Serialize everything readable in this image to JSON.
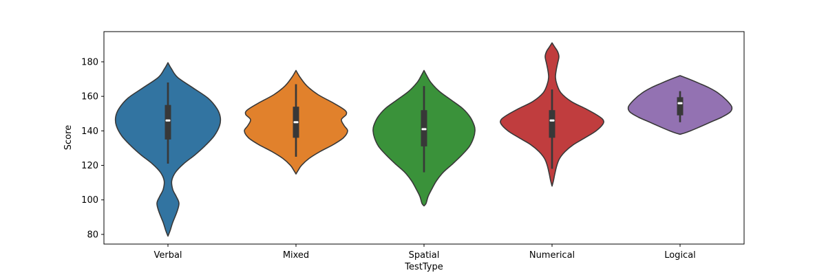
{
  "chart_data": {
    "type": "violin",
    "title": "",
    "xlabel": "TestType",
    "ylabel": "Score",
    "categories": [
      "Verbal",
      "Mixed",
      "Spatial",
      "Numerical",
      "Logical"
    ],
    "yticks": [
      80,
      100,
      120,
      140,
      160,
      180
    ],
    "ylim": [
      74.4,
      197.5
    ],
    "grid": false,
    "legend": false,
    "background": "#ffffff",
    "spine_color": "#000000",
    "edge_color": "#383838",
    "inner_box_color": "#383838",
    "median_color": "#ffffff",
    "profile_units": [
      "score",
      "halfwidth_px"
    ],
    "series": [
      {
        "name": "Verbal",
        "color": "#3274a1",
        "stats": {
          "min": 79,
          "whisker_low": 121,
          "q1": 135,
          "median": 146,
          "q3": 155,
          "whisker_high": 168,
          "max": 179
        },
        "profile": [
          [
            179.5,
            0
          ],
          [
            176,
            5
          ],
          [
            171,
            14
          ],
          [
            165,
            36
          ],
          [
            159,
            58
          ],
          [
            153,
            71
          ],
          [
            148,
            76
          ],
          [
            143,
            75
          ],
          [
            137,
            67
          ],
          [
            131,
            53
          ],
          [
            126,
            39
          ],
          [
            121,
            23
          ],
          [
            116,
            11
          ],
          [
            111,
            5.5
          ],
          [
            106,
            7
          ],
          [
            102,
            12
          ],
          [
            98,
            16
          ],
          [
            93,
            13
          ],
          [
            87,
            7
          ],
          [
            82,
            3
          ],
          [
            79,
            0
          ]
        ]
      },
      {
        "name": "Mixed",
        "color": "#e1812c",
        "stats": {
          "min": 115,
          "whisker_low": 125,
          "q1": 136,
          "median": 145,
          "q3": 154,
          "whisker_high": 167,
          "max": 175
        },
        "profile": [
          [
            175,
            0
          ],
          [
            171,
            6
          ],
          [
            166,
            16
          ],
          [
            161,
            32
          ],
          [
            156,
            55
          ],
          [
            152,
            71
          ],
          [
            149.5,
            73
          ],
          [
            146.5,
            66
          ],
          [
            143,
            70
          ],
          [
            140,
            75
          ],
          [
            136,
            69
          ],
          [
            132,
            54
          ],
          [
            128,
            35
          ],
          [
            124,
            19
          ],
          [
            120,
            8
          ],
          [
            117,
            3
          ],
          [
            115,
            0
          ]
        ]
      },
      {
        "name": "Spatial",
        "color": "#3a923a",
        "stats": {
          "min": 97,
          "whisker_low": 116,
          "q1": 131,
          "median": 141,
          "q3": 152,
          "whisker_high": 166,
          "max": 175
        },
        "profile": [
          [
            175,
            0
          ],
          [
            172,
            4
          ],
          [
            168,
            10
          ],
          [
            163,
            22
          ],
          [
            158,
            39
          ],
          [
            153,
            56
          ],
          [
            148,
            67
          ],
          [
            143,
            73
          ],
          [
            140,
            74
          ],
          [
            136,
            72
          ],
          [
            131,
            66
          ],
          [
            126,
            55
          ],
          [
            121,
            42
          ],
          [
            116,
            28
          ],
          [
            111,
            18
          ],
          [
            106,
            11
          ],
          [
            102,
            6
          ],
          [
            98,
            3
          ],
          [
            96.5,
            0
          ]
        ]
      },
      {
        "name": "Numerical",
        "color": "#c03d3e",
        "stats": {
          "min": 108,
          "whisker_low": 118,
          "q1": 136,
          "median": 146,
          "q3": 152,
          "whisker_high": 164,
          "max": 191
        },
        "profile": [
          [
            191,
            0
          ],
          [
            188.5,
            4
          ],
          [
            186,
            8
          ],
          [
            183,
            10
          ],
          [
            179,
            8
          ],
          [
            175,
            6
          ],
          [
            171,
            5
          ],
          [
            167,
            7
          ],
          [
            162,
            13
          ],
          [
            157,
            28
          ],
          [
            153,
            48
          ],
          [
            149,
            66
          ],
          [
            146.5,
            74
          ],
          [
            144,
            74
          ],
          [
            140,
            64
          ],
          [
            136,
            48
          ],
          [
            132,
            31
          ],
          [
            128,
            19
          ],
          [
            124,
            11
          ],
          [
            120,
            7
          ],
          [
            115,
            4
          ],
          [
            111,
            2
          ],
          [
            108,
            0
          ]
        ]
      },
      {
        "name": "Logical",
        "color": "#9372b2",
        "stats": {
          "min": 138,
          "whisker_low": 145,
          "q1": 149,
          "median": 156,
          "q3": 159.5,
          "whisker_high": 163,
          "max": 172
        },
        "profile": [
          [
            172,
            0
          ],
          [
            170,
            13
          ],
          [
            167.5,
            28
          ],
          [
            165,
            42
          ],
          [
            162,
            55
          ],
          [
            158,
            67
          ],
          [
            154,
            75
          ],
          [
            151,
            73
          ],
          [
            148,
            61
          ],
          [
            145,
            44
          ],
          [
            142,
            27
          ],
          [
            140,
            15
          ],
          [
            138.7,
            6
          ],
          [
            138,
            0
          ]
        ]
      }
    ]
  }
}
